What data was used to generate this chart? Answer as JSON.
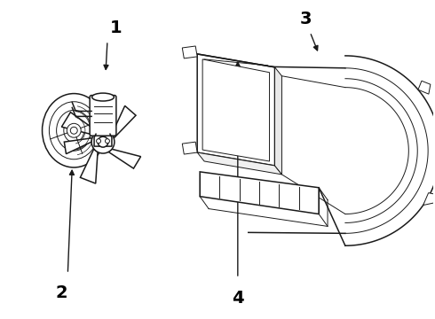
{
  "bg_color": "#ffffff",
  "line_color": "#1a1a1a",
  "label_color": "#000000",
  "label_fontsize": 14,
  "figsize": [
    4.9,
    3.6
  ],
  "dpi": 100
}
